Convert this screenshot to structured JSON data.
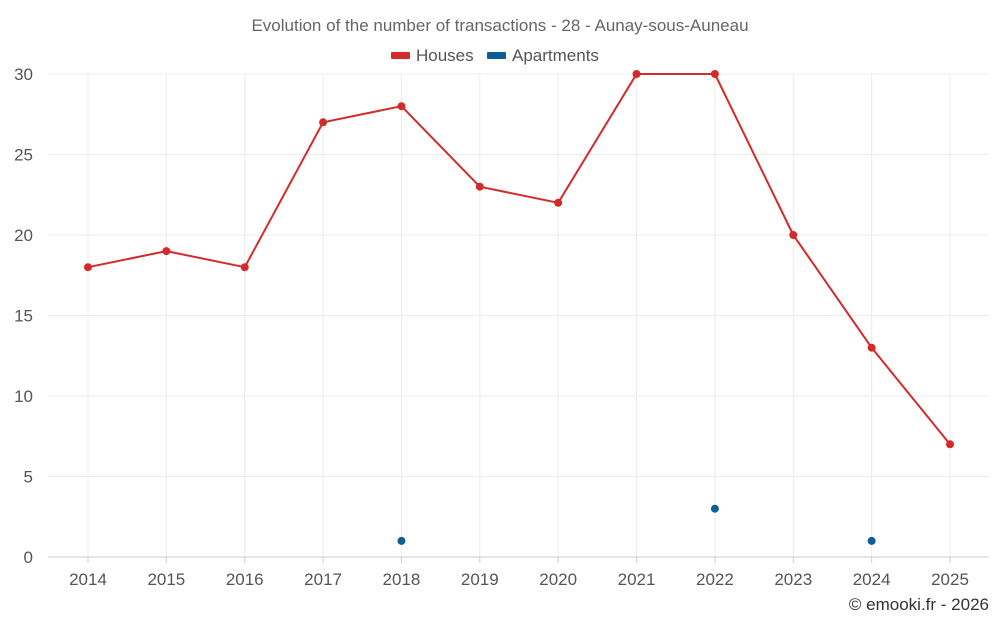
{
  "chart_data": {
    "type": "line",
    "title": "Evolution of the number of transactions - 28 - Aunay-sous-Auneau",
    "categories": [
      "2014",
      "2015",
      "2016",
      "2017",
      "2018",
      "2019",
      "2020",
      "2021",
      "2022",
      "2023",
      "2024",
      "2025"
    ],
    "series": [
      {
        "name": "Houses",
        "color": "#d42a2a",
        "values": [
          18,
          19,
          18,
          27,
          28,
          23,
          22,
          30,
          30,
          20,
          13,
          7
        ],
        "style": "line-with-markers"
      },
      {
        "name": "Apartments",
        "color": "#0b5f96",
        "values": [
          null,
          null,
          null,
          null,
          1,
          null,
          null,
          null,
          3,
          null,
          1,
          null
        ],
        "style": "markers-only"
      }
    ],
    "y_ticks": [
      "0",
      "5",
      "10",
      "15",
      "20",
      "25",
      "30"
    ],
    "ylim": [
      0,
      30
    ],
    "grid": true,
    "legend_position": "top-center",
    "credit": "© emooki.fr - 2026"
  }
}
